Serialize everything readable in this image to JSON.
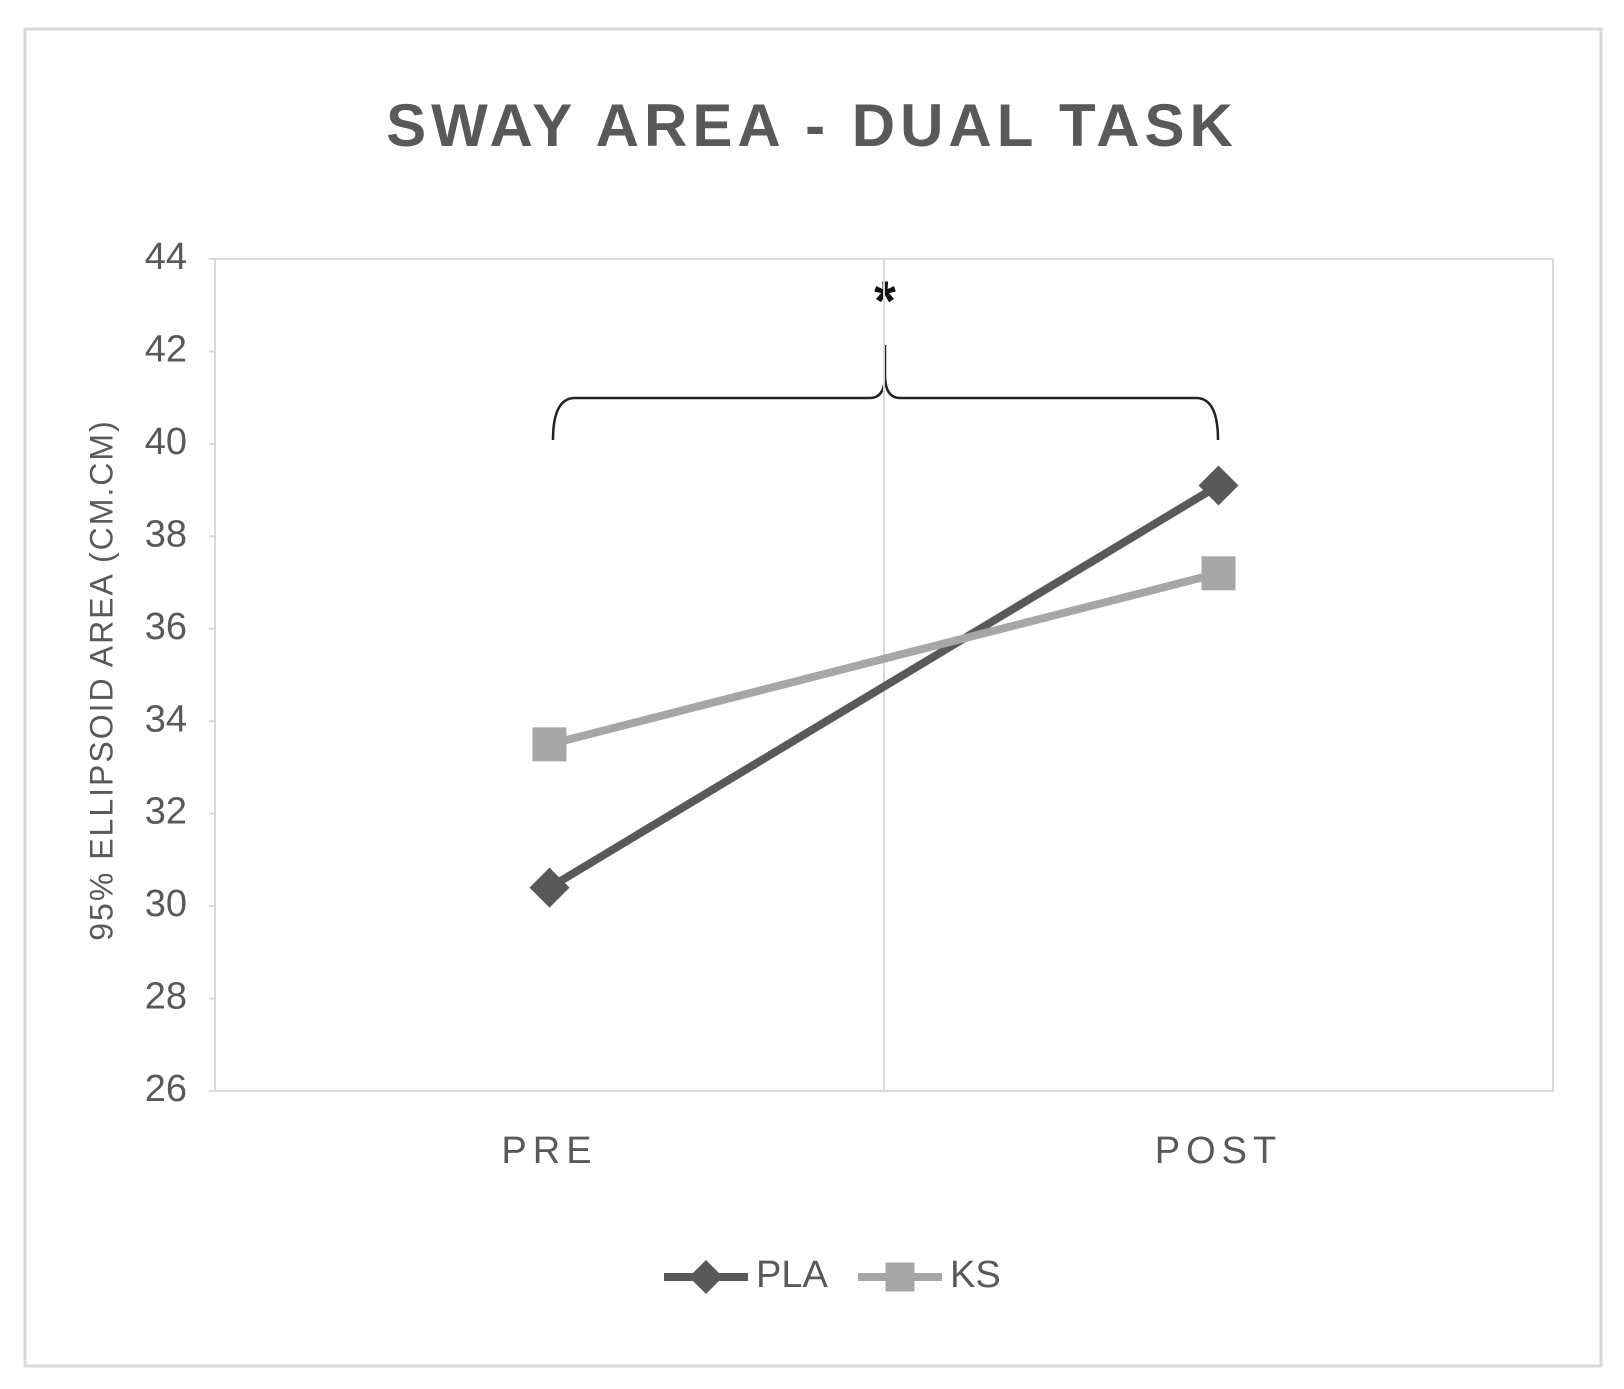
{
  "chart_data": {
    "type": "line",
    "title": "SWAY AREA - DUAL TASK",
    "y_label": "95% ELLIPSOID AREA (CM.CM)",
    "categories": [
      "PRE",
      "POST"
    ],
    "series": [
      {
        "name": "PLA",
        "color": "#595959",
        "marker": "diamond",
        "values": [
          30.4,
          39.1
        ]
      },
      {
        "name": "KS",
        "color": "#a6a6a6",
        "marker": "square",
        "values": [
          33.5,
          37.2
        ]
      }
    ],
    "ylim": [
      26,
      44
    ],
    "yticks": [
      26,
      28,
      30,
      32,
      34,
      36,
      38,
      40,
      42,
      44
    ],
    "annotation": "*",
    "legend": "bottom"
  }
}
